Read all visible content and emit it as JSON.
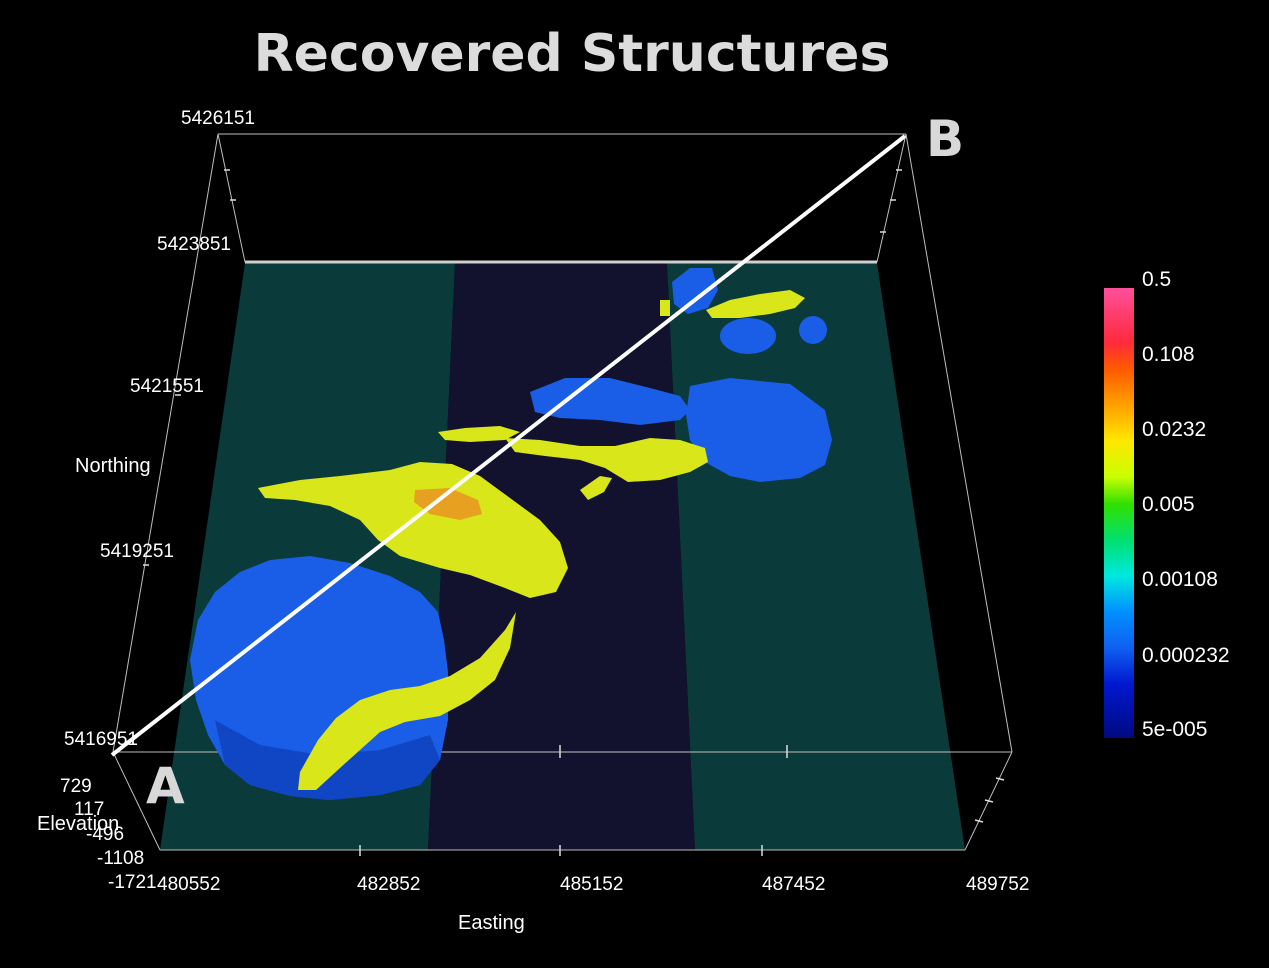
{
  "chart_data": {
    "type": "3d-voxel",
    "title": "Recovered Structures",
    "xlabel": "Easting",
    "ylabel": "Northing",
    "zlabel": "Elevation",
    "x_ticks": [
      "480552",
      "482852",
      "485152",
      "487452",
      "489752"
    ],
    "y_ticks": [
      "5416951",
      "5419251",
      "5421551",
      "5423851",
      "5426151"
    ],
    "z_ticks": [
      "729",
      "117",
      "-496",
      "-1108",
      "-1721"
    ],
    "xlim": [
      480552,
      489752
    ],
    "ylim": [
      5416951,
      5426151
    ],
    "zlim": [
      -1721,
      729
    ],
    "colorbar": {
      "scale": "log",
      "labels": [
        "0.5",
        "0.108",
        "0.0232",
        "0.005",
        "0.00108",
        "0.000232",
        "5e-005"
      ],
      "colors": [
        "#ff4f9c",
        "#ff5a00",
        "#ffe800",
        "#30e000",
        "#00e8e0",
        "#1060f0",
        "#000a80"
      ]
    },
    "section_line": {
      "start_label": "A",
      "end_label": "B"
    },
    "colors": {
      "background": "#000000",
      "ground_light": "#0b3a3a",
      "ground_dark": "#12122e",
      "low_body": "#1a5ee8",
      "mid_body": "#d8e61a",
      "high_core": "#e8a020",
      "section_line": "#ffffff"
    }
  }
}
